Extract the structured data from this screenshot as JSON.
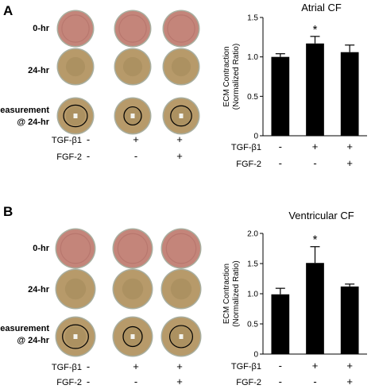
{
  "panels": [
    {
      "label": "A",
      "rows": [
        "0-hr",
        "24-hr",
        "Measurement",
        "@ 24-hr"
      ],
      "conditions": [
        {
          "label": "TGF-β1",
          "signs": [
            "-",
            "+",
            "+"
          ]
        },
        {
          "label": "FGF-2",
          "signs": [
            "-",
            "-",
            "+"
          ]
        }
      ]
    },
    {
      "label": "B",
      "rows": [
        "0-hr",
        "24-hr",
        "Measurement",
        "@ 24-hr"
      ],
      "conditions": [
        {
          "label": "TGF-β1",
          "signs": [
            "-",
            "+",
            "+"
          ]
        },
        {
          "label": "FGF-2",
          "signs": [
            "-",
            "-",
            "+"
          ]
        }
      ]
    }
  ],
  "colors": {
    "bar": "#000000",
    "well_pink": "#c4857a",
    "well_tan": "#b79a6a",
    "well_rim": "#a8ae9f"
  },
  "chart_data": [
    {
      "type": "bar",
      "title": "Atrial CF",
      "ylabel": "ECM Contraction (Normalized Ratio)",
      "ylabel_lines": [
        "ECM Contraction",
        "(Normalized Ratio)"
      ],
      "ylim": [
        0,
        1.5
      ],
      "yticks": [
        "0",
        "0.5",
        "1.0",
        "1.5"
      ],
      "values": [
        1.0,
        1.17,
        1.06
      ],
      "errors": [
        0.04,
        0.09,
        0.09
      ],
      "annotations": [
        "",
        "*",
        ""
      ]
    },
    {
      "type": "bar",
      "title": "Ventricular CF",
      "ylabel": "ECM Contraction (Normalized Ratio)",
      "ylabel_lines": [
        "ECM Contraction",
        "(Normalized Ratio)"
      ],
      "ylim": [
        0,
        2.0
      ],
      "yticks": [
        "0",
        "0.5",
        "1.0",
        "1.5",
        "2.0"
      ],
      "values": [
        0.99,
        1.51,
        1.12
      ],
      "errors": [
        0.1,
        0.27,
        0.04
      ],
      "annotations": [
        "",
        "*",
        ""
      ]
    }
  ]
}
